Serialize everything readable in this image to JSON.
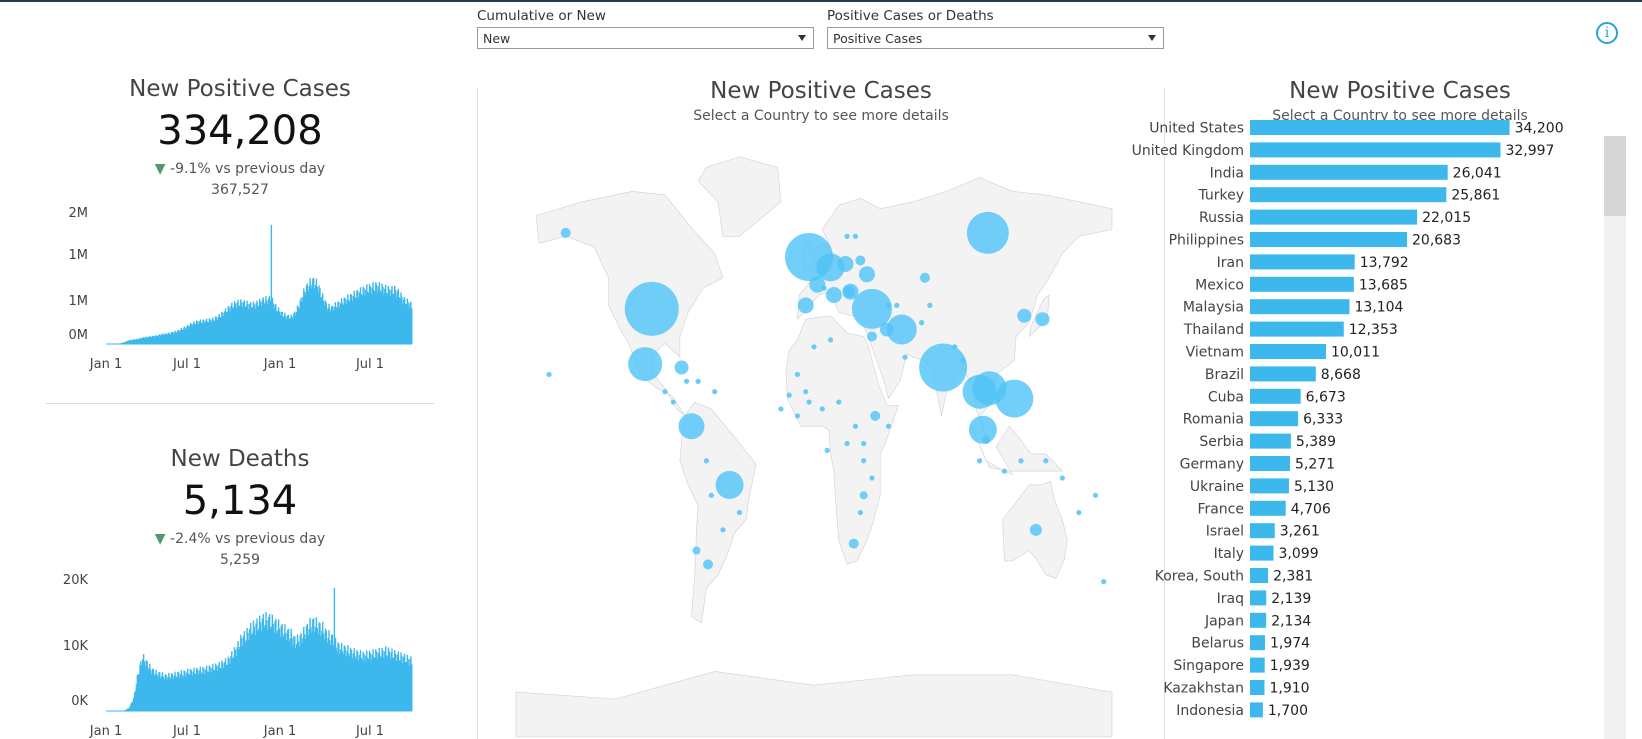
{
  "filters": {
    "cumulative": {
      "label": "Cumulative or New",
      "value": "New"
    },
    "measure": {
      "label": "Positive Cases or Deaths",
      "value": "Positive Cases"
    }
  },
  "kpis": {
    "cases": {
      "title": "New Positive Cases",
      "value": "334,208",
      "delta": "-9.1% vs previous day",
      "previous": "367,527"
    },
    "deaths": {
      "title": "New Deaths",
      "value": "5,134",
      "delta": "-2.4% vs previous day",
      "previous": "5,259"
    }
  },
  "map": {
    "title": "New Positive Cases",
    "subtitle": "Select a Country to see more details"
  },
  "barpanel": {
    "title": "New Positive Cases",
    "subtitle": "Select a Country to see more details"
  },
  "colors": {
    "accent": "#3db8ec",
    "bubble": "#4fc3f7",
    "land": "#f3f3f3",
    "border": "#d0d0d0",
    "delta_down": "#4e9a6e"
  },
  "chart_data": [
    {
      "type": "area",
      "title": "",
      "series_shape": "daily new positive cases over time (approximate envelope)",
      "x_ticks": [
        "Jan 1",
        "Jul 1",
        "Jan 1",
        "Jul 1"
      ],
      "y_ticks": [
        "2M",
        "1M",
        "1M",
        "0M"
      ],
      "x": [
        0,
        10,
        20,
        30,
        40,
        50,
        60,
        70,
        80,
        90,
        100,
        110,
        120,
        130,
        140,
        150,
        160,
        170,
        175,
        180,
        185,
        190,
        200,
        210,
        220,
        230,
        240,
        250,
        260,
        270,
        280,
        290,
        300,
        310,
        320,
        330,
        340,
        350,
        360,
        365,
        366,
        367,
        370,
        380,
        390,
        400,
        410,
        420,
        430,
        440,
        450,
        460,
        470,
        480,
        490,
        500,
        510,
        520,
        530,
        540,
        550,
        560,
        570,
        580,
        590,
        600,
        610,
        620,
        630,
        640,
        650,
        660,
        670,
        680
      ],
      "y": [
        0,
        0,
        0.002,
        0.01,
        0.03,
        0.06,
        0.07,
        0.08,
        0.1,
        0.11,
        0.12,
        0.13,
        0.15,
        0.16,
        0.17,
        0.19,
        0.21,
        0.25,
        0.26,
        0.28,
        0.3,
        0.32,
        0.35,
        0.36,
        0.37,
        0.38,
        0.4,
        0.44,
        0.5,
        0.56,
        0.62,
        0.65,
        0.66,
        0.64,
        0.62,
        0.63,
        0.66,
        0.7,
        0.7,
        0.72,
        2.0,
        0.7,
        0.65,
        0.55,
        0.48,
        0.44,
        0.43,
        0.5,
        0.66,
        0.85,
        0.95,
        1.0,
        0.92,
        0.74,
        0.6,
        0.57,
        0.62,
        0.66,
        0.7,
        0.74,
        0.78,
        0.82,
        0.85,
        0.88,
        0.9,
        0.92,
        0.9,
        0.87,
        0.85,
        0.86,
        0.8,
        0.7,
        0.66,
        0.6
      ]
    },
    {
      "type": "area",
      "title": "",
      "series_shape": "daily new deaths over time (approximate envelope)",
      "x_ticks": [
        "Jan 1",
        "Jul 1",
        "Jan 1",
        "Jul 1"
      ],
      "y_ticks": [
        "20K",
        "10K",
        "0K"
      ],
      "x": [
        0,
        10,
        20,
        30,
        40,
        50,
        60,
        70,
        80,
        90,
        100,
        110,
        120,
        130,
        140,
        150,
        160,
        170,
        180,
        190,
        200,
        210,
        220,
        230,
        240,
        250,
        260,
        270,
        280,
        290,
        300,
        310,
        320,
        330,
        340,
        350,
        360,
        370,
        380,
        390,
        400,
        410,
        420,
        430,
        440,
        450,
        460,
        470,
        480,
        490,
        500,
        505,
        506,
        507,
        510,
        520,
        530,
        540,
        550,
        560,
        570,
        580,
        590,
        600,
        610,
        620,
        630,
        640,
        650,
        660,
        670,
        680
      ],
      "y": [
        0,
        0,
        0,
        0,
        100,
        500,
        2000,
        6000,
        8500,
        7500,
        6500,
        6000,
        5800,
        5500,
        5600,
        5700,
        5900,
        6000,
        6200,
        6300,
        6400,
        6500,
        6600,
        6800,
        7000,
        7200,
        7600,
        8000,
        9000,
        10000,
        11500,
        12000,
        13000,
        13500,
        14000,
        14500,
        14500,
        14000,
        13500,
        13000,
        12500,
        12000,
        11000,
        11500,
        12500,
        13500,
        14000,
        13500,
        13000,
        12000,
        11500,
        11000,
        20000,
        11000,
        10500,
        10000,
        9800,
        9500,
        9200,
        9000,
        8800,
        8900,
        9000,
        9200,
        9300,
        9500,
        9300,
        9000,
        8700,
        8500,
        8200,
        8000
      ]
    },
    {
      "type": "scatter",
      "title": "New Positive Cases",
      "encoding": "bubble size = new positive cases, positioned by country longitude/latitude",
      "points": [
        {
          "lon": -98,
          "lat": 39,
          "r": 27
        },
        {
          "lon": -102,
          "lat": 23,
          "r": 17
        },
        {
          "lon": -74,
          "lat": 5,
          "r": 13
        },
        {
          "lon": -51,
          "lat": -12,
          "r": 14
        },
        {
          "lon": -3,
          "lat": 54,
          "r": 24
        },
        {
          "lon": 10,
          "lat": 51,
          "r": 14
        },
        {
          "lon": 35,
          "lat": 39,
          "r": 20
        },
        {
          "lon": 53,
          "lat": 33,
          "r": 15
        },
        {
          "lon": 78,
          "lat": 22,
          "r": 24
        },
        {
          "lon": 105,
          "lat": 61,
          "r": 21
        },
        {
          "lon": 100,
          "lat": 15,
          "r": 17
        },
        {
          "lon": 106,
          "lat": 16,
          "r": 17
        },
        {
          "lon": 121,
          "lat": 13,
          "r": 19
        },
        {
          "lon": 102,
          "lat": 4,
          "r": 14
        },
        {
          "lon": 138,
          "lat": 36,
          "r": 7
        },
        {
          "lon": 127,
          "lat": 37,
          "r": 7
        },
        {
          "lon": 134,
          "lat": -25,
          "r": 6
        },
        {
          "lon": 24,
          "lat": -29,
          "r": 5
        },
        {
          "lon": -64,
          "lat": -35,
          "r": 5
        },
        {
          "lon": -71,
          "lat": -31,
          "r": 4
        },
        {
          "lon": -80,
          "lat": 22,
          "r": 7
        },
        {
          "lon": 104,
          "lat": 1,
          "r": 4
        },
        {
          "lon": 28,
          "lat": 53,
          "r": 5
        },
        {
          "lon": 67,
          "lat": 48,
          "r": 5
        },
        {
          "lon": 44,
          "lat": 33,
          "r": 7
        },
        {
          "lon": 22,
          "lat": 44,
          "r": 8
        },
        {
          "lon": 32,
          "lat": 49,
          "r": 8
        },
        {
          "lon": 2,
          "lat": 46,
          "r": 8
        },
        {
          "lon": 12,
          "lat": 43,
          "r": 8
        },
        {
          "lon": 35,
          "lat": 31,
          "r": 5
        },
        {
          "lon": 21,
          "lat": 44,
          "r": 6
        },
        {
          "lon": -150,
          "lat": 61,
          "r": 5
        },
        {
          "lon": 19,
          "lat": 52,
          "r": 8
        },
        {
          "lon": 37,
          "lat": 8,
          "r": 5
        },
        {
          "lon": 30,
          "lat": -15,
          "r": 4
        },
        {
          "lon": -5,
          "lat": 40,
          "r": 8
        }
      ]
    },
    {
      "type": "bar",
      "title": "New Positive Cases",
      "categories": [
        "United States",
        "United Kingdom",
        "India",
        "Turkey",
        "Russia",
        "Philippines",
        "Iran",
        "Mexico",
        "Malaysia",
        "Thailand",
        "Vietnam",
        "Brazil",
        "Cuba",
        "Romania",
        "Serbia",
        "Germany",
        "Ukraine",
        "France",
        "Israel",
        "Italy",
        "Korea, South",
        "Iraq",
        "Japan",
        "Belarus",
        "Singapore",
        "Kazakhstan",
        "Indonesia"
      ],
      "values": [
        34200,
        32997,
        26041,
        25861,
        22015,
        20683,
        13792,
        13685,
        13104,
        12353,
        10011,
        8668,
        6673,
        6333,
        5389,
        5271,
        5130,
        4706,
        3261,
        3099,
        2381,
        2139,
        2134,
        1974,
        1939,
        1910,
        1700
      ],
      "labels": [
        "34,200",
        "32,997",
        "26,041",
        "25,861",
        "22,015",
        "20,683",
        "13,792",
        "13,685",
        "13,104",
        "12,353",
        "10,011",
        "8,668",
        "6,673",
        "6,333",
        "5,389",
        "5,271",
        "5,130",
        "4,706",
        "3,261",
        "3,099",
        "2,381",
        "2,139",
        "2,134",
        "1,974",
        "1,939",
        "1,910",
        "1,700"
      ]
    }
  ]
}
